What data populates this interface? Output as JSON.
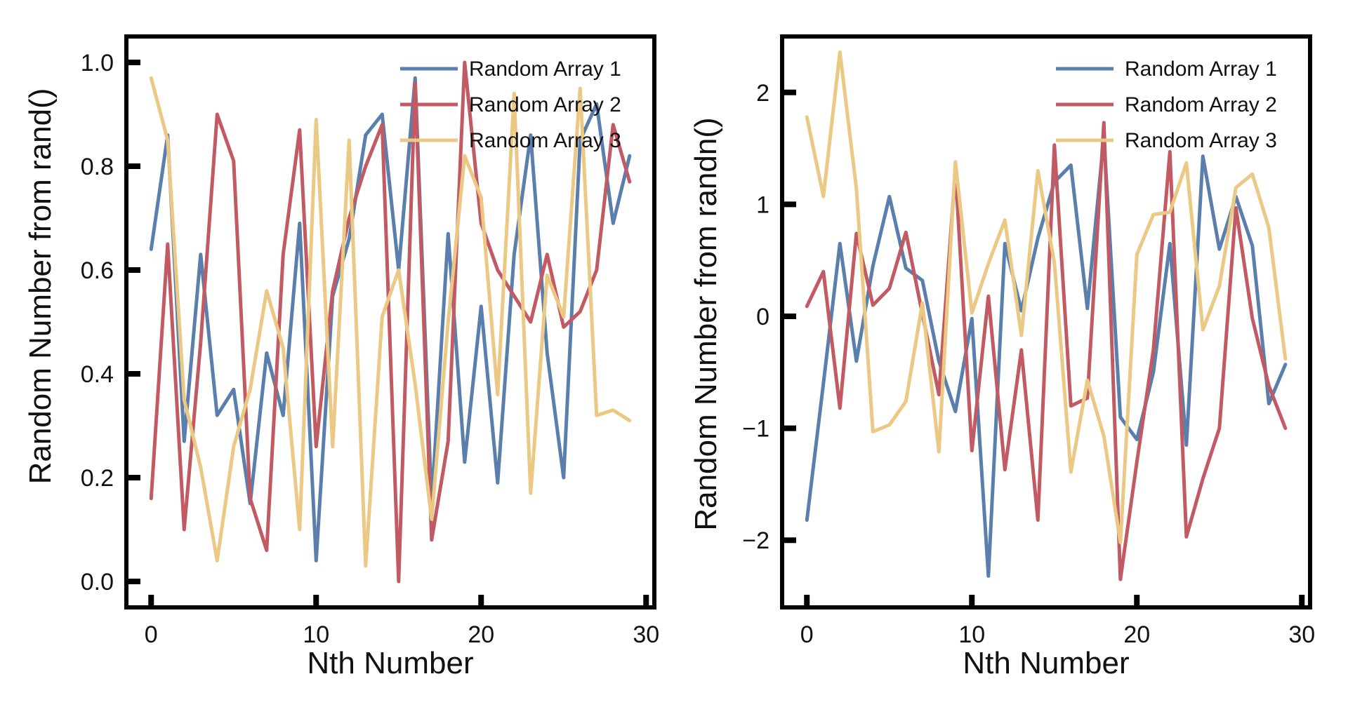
{
  "chart_data": [
    {
      "type": "line",
      "xlabel": "Nth Number",
      "ylabel": "Random Number from rand()",
      "xlim": [
        -1.5,
        30.5
      ],
      "ylim": [
        -0.05,
        1.05
      ],
      "xticks": [
        0,
        10,
        20,
        30
      ],
      "yticks": [
        0.0,
        0.2,
        0.4,
        0.6,
        0.8,
        1.0
      ],
      "ytick_labels": [
        "0.0",
        "0.2",
        "0.4",
        "0.6",
        "0.8",
        "1.0"
      ],
      "grid": false,
      "legend_position": "top-right",
      "x": [
        0,
        1,
        2,
        3,
        4,
        5,
        6,
        7,
        8,
        9,
        10,
        11,
        12,
        13,
        14,
        15,
        16,
        17,
        18,
        19,
        20,
        21,
        22,
        23,
        24,
        25,
        26,
        27,
        28,
        29
      ],
      "series": [
        {
          "name": "Random Array 1",
          "color": "#5b7fad",
          "values": [
            0.64,
            0.86,
            0.27,
            0.63,
            0.32,
            0.37,
            0.15,
            0.44,
            0.32,
            0.69,
            0.04,
            0.55,
            0.66,
            0.86,
            0.9,
            0.6,
            0.97,
            0.15,
            0.67,
            0.23,
            0.53,
            0.19,
            0.63,
            0.86,
            0.44,
            0.2,
            0.85,
            0.92,
            0.69,
            0.82
          ]
        },
        {
          "name": "Random Array 2",
          "color": "#c25a63",
          "values": [
            0.16,
            0.65,
            0.1,
            0.46,
            0.9,
            0.81,
            0.16,
            0.06,
            0.63,
            0.87,
            0.26,
            0.56,
            0.7,
            0.8,
            0.88,
            0.0,
            0.96,
            0.08,
            0.27,
            1.0,
            0.69,
            0.6,
            0.55,
            0.5,
            0.63,
            0.49,
            0.52,
            0.6,
            0.88,
            0.77
          ]
        },
        {
          "name": "Random Array 3",
          "color": "#ebc883",
          "values": [
            0.97,
            0.85,
            0.35,
            0.22,
            0.04,
            0.26,
            0.37,
            0.56,
            0.45,
            0.1,
            0.89,
            0.26,
            0.85,
            0.03,
            0.51,
            0.6,
            0.38,
            0.12,
            0.5,
            0.82,
            0.74,
            0.36,
            0.94,
            0.17,
            0.59,
            0.51,
            0.95,
            0.32,
            0.33,
            0.31
          ]
        }
      ]
    },
    {
      "type": "line",
      "xlabel": "Nth Number",
      "ylabel": "Random Number from randn()",
      "xlim": [
        -1.5,
        30.5
      ],
      "ylim": [
        -2.6,
        2.5
      ],
      "xticks": [
        0,
        10,
        20,
        30
      ],
      "yticks": [
        -2,
        -1,
        0,
        1,
        2
      ],
      "ytick_labels": [
        "−2",
        "−1",
        "0",
        "1",
        "2"
      ],
      "grid": false,
      "legend_position": "top-right",
      "x": [
        0,
        1,
        2,
        3,
        4,
        5,
        6,
        7,
        8,
        9,
        10,
        11,
        12,
        13,
        14,
        15,
        16,
        17,
        18,
        19,
        20,
        21,
        22,
        23,
        24,
        25,
        26,
        27,
        28,
        29
      ],
      "series": [
        {
          "name": "Random Array 1",
          "color": "#5b7fad",
          "values": [
            -1.82,
            -0.6,
            0.65,
            -0.4,
            0.45,
            1.07,
            0.43,
            0.32,
            -0.4,
            -0.85,
            -0.02,
            -2.32,
            0.65,
            0.05,
            0.7,
            1.2,
            1.35,
            0.07,
            1.6,
            -0.9,
            -1.1,
            -0.5,
            0.65,
            -1.15,
            1.43,
            0.6,
            1.07,
            0.63,
            -0.78,
            -0.43
          ]
        },
        {
          "name": "Random Array 2",
          "color": "#c25a63",
          "values": [
            0.09,
            0.4,
            -0.82,
            0.74,
            0.1,
            0.25,
            0.75,
            0.02,
            -0.7,
            1.3,
            -1.2,
            0.18,
            -1.37,
            -0.3,
            -1.82,
            1.53,
            -0.8,
            -0.73,
            1.73,
            -2.35,
            -1.3,
            -0.3,
            1.47,
            -1.97,
            -1.45,
            -1.0,
            0.97,
            -0.02,
            -0.62,
            -1.0
          ]
        },
        {
          "name": "Random Array 3",
          "color": "#ebc883",
          "values": [
            1.78,
            1.07,
            2.36,
            1.14,
            -1.03,
            -0.97,
            -0.76,
            0.12,
            -1.21,
            1.38,
            0.03,
            0.47,
            0.86,
            -0.17,
            1.3,
            0.48,
            -1.39,
            -0.57,
            -1.07,
            -2.02,
            0.55,
            0.91,
            0.93,
            1.37,
            -0.12,
            0.27,
            1.15,
            1.27,
            0.79,
            -0.38
          ]
        }
      ]
    }
  ]
}
